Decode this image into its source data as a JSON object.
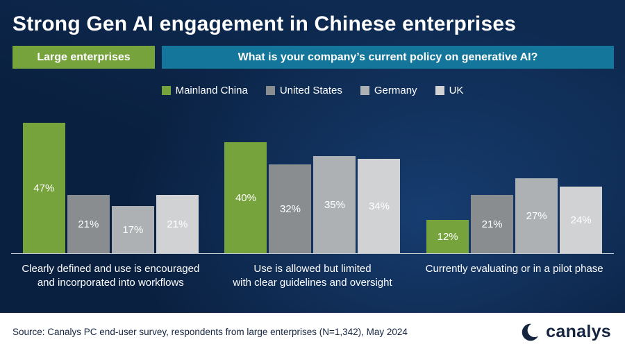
{
  "title": "Strong Gen AI engagement in Chinese enterprises",
  "badge": {
    "label": "Large enterprises"
  },
  "question": "What is your company’s current policy on generative AI?",
  "legend": [
    {
      "label": "Mainland China",
      "color": "#76a33b"
    },
    {
      "label": "United States",
      "color": "#8a8d90"
    },
    {
      "label": "Germany",
      "color": "#aeb1b3"
    },
    {
      "label": "UK",
      "color": "#d0d2d4"
    }
  ],
  "chart_data": {
    "type": "bar",
    "categories": [
      "Clearly defined and use is encouraged and incorporated into workflows",
      "Use is allowed but limited with clear guidelines and oversight",
      "Currently evaluating or in a pilot phase"
    ],
    "category_lines": [
      [
        "Clearly defined and use is encouraged",
        "and incorporated into workflows"
      ],
      [
        "Use is allowed but limited",
        "with clear guidelines and oversight"
      ],
      [
        "Currently evaluating or in a pilot phase"
      ]
    ],
    "series": [
      {
        "name": "Mainland China",
        "color": "#76a33b",
        "values": [
          47,
          40,
          12
        ]
      },
      {
        "name": "United States",
        "color": "#8a8d90",
        "values": [
          21,
          32,
          21
        ]
      },
      {
        "name": "Germany",
        "color": "#aeb1b3",
        "values": [
          17,
          35,
          27
        ]
      },
      {
        "name": "UK",
        "color": "#d0d2d4",
        "values": [
          21,
          34,
          24
        ]
      }
    ],
    "value_suffix": "%",
    "ylim": [
      0,
      50
    ],
    "legend_position": "top",
    "grid": false
  },
  "source": "Source: Canalys PC end-user survey, respondents from large enterprises (N=1,342), May 2024",
  "logo_text": "canalys"
}
